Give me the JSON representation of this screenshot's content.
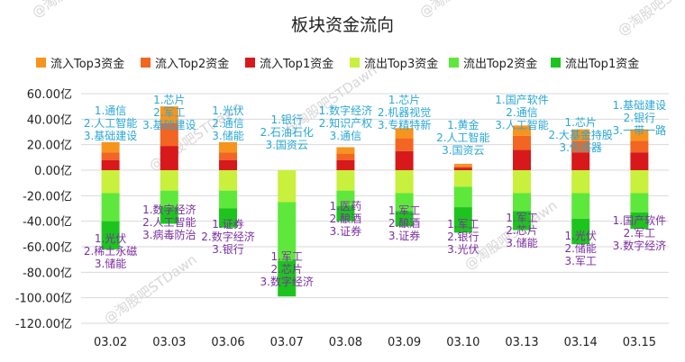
{
  "chart_data": {
    "type": "bar",
    "title": "板块资金流向",
    "categories": [
      "03.02",
      "03.03",
      "03.06",
      "03.07",
      "03.08",
      "03.09",
      "03.10",
      "03.13",
      "03.14",
      "03.15"
    ],
    "y_ticks": [
      "60.00亿",
      "40.00亿",
      "20.00亿",
      "0.00亿",
      "-20.00亿",
      "-40.00亿",
      "-60.00亿",
      "-80.00亿",
      "-100.00亿",
      "-120.00亿"
    ],
    "ylim": [
      -120,
      60
    ],
    "grid": true,
    "legend_position": "top",
    "series": [
      {
        "name": "流入Top3资金",
        "color": "#f7941d",
        "values": [
          8,
          13,
          8,
          0,
          5,
          8,
          2,
          8,
          9,
          9
        ]
      },
      {
        "name": "流入Top2资金",
        "color": "#f26522",
        "values": [
          6,
          18,
          6,
          0,
          5,
          10,
          1,
          11,
          9,
          9
        ]
      },
      {
        "name": "流入Top1资金",
        "color": "#d7191c",
        "values": [
          8,
          19,
          8,
          0,
          8,
          15,
          2,
          16,
          14,
          14
        ]
      },
      {
        "name": "流出Top3资金",
        "color": "#c8f03c",
        "values": [
          -18,
          -16,
          -16,
          -25,
          -16,
          -18,
          -13,
          -18,
          -18,
          -18
        ]
      },
      {
        "name": "流出Top2资金",
        "color": "#5ee83c",
        "values": [
          -22,
          -13,
          -14,
          -46,
          -12,
          -14,
          -16,
          -14,
          -20,
          -15
        ]
      },
      {
        "name": "流出Top1资金",
        "color": "#1ec41e",
        "values": [
          -22,
          -13,
          -15,
          -28,
          -12,
          -12,
          -20,
          -15,
          -20,
          -13
        ]
      }
    ],
    "inflow_labels": [
      [
        "1.通信",
        "2.人工智能",
        "3.基础建设"
      ],
      [
        "1.芯片",
        "2.军工",
        "3.基础建设"
      ],
      [
        "1.光伏",
        "2.通信",
        "3.储能"
      ],
      [
        "1.银行",
        "2.石油石化",
        "3.国资云"
      ],
      [
        "1.数字经济",
        "2.知识产权",
        "3.通信"
      ],
      [
        "1.芯片",
        "2.机器视觉",
        "3.专精特新"
      ],
      [
        "1.黄金",
        "2.人工智能",
        "3.国资云"
      ],
      [
        "1.国产软件",
        "2.通信",
        "3.人工智能"
      ],
      [
        "1.芯片",
        "2.大基金持股",
        "3.传感器"
      ],
      [
        "1.基础建设",
        "2.银行",
        "3.一带一路"
      ]
    ],
    "outflow_labels": [
      [
        "1.光伏",
        "2.稀土永磁",
        "3.储能"
      ],
      [
        "1.数字经济",
        "2.人工智能",
        "3.病毒防治"
      ],
      [
        "1.证券",
        "2.数字经济",
        "3.银行"
      ],
      [
        "1.军工",
        "2.芯片",
        "3.数字经济"
      ],
      [
        "1.医药",
        "2.酿酒",
        "3.证券"
      ],
      [
        "1.军工",
        "2.酿酒",
        "3.证券"
      ],
      [
        "1.军工",
        "2.银行",
        "3.光伏"
      ],
      [
        "1.军工",
        "2.芯片",
        "3.储能"
      ],
      [
        "1.光伏",
        "2.储能",
        "3.军工"
      ],
      [
        "1.国产软件",
        "2.军工",
        "3.数字经济"
      ]
    ]
  },
  "watermark": {
    "text": "@淘股吧STDawn",
    "color": "#d7d7d7"
  }
}
